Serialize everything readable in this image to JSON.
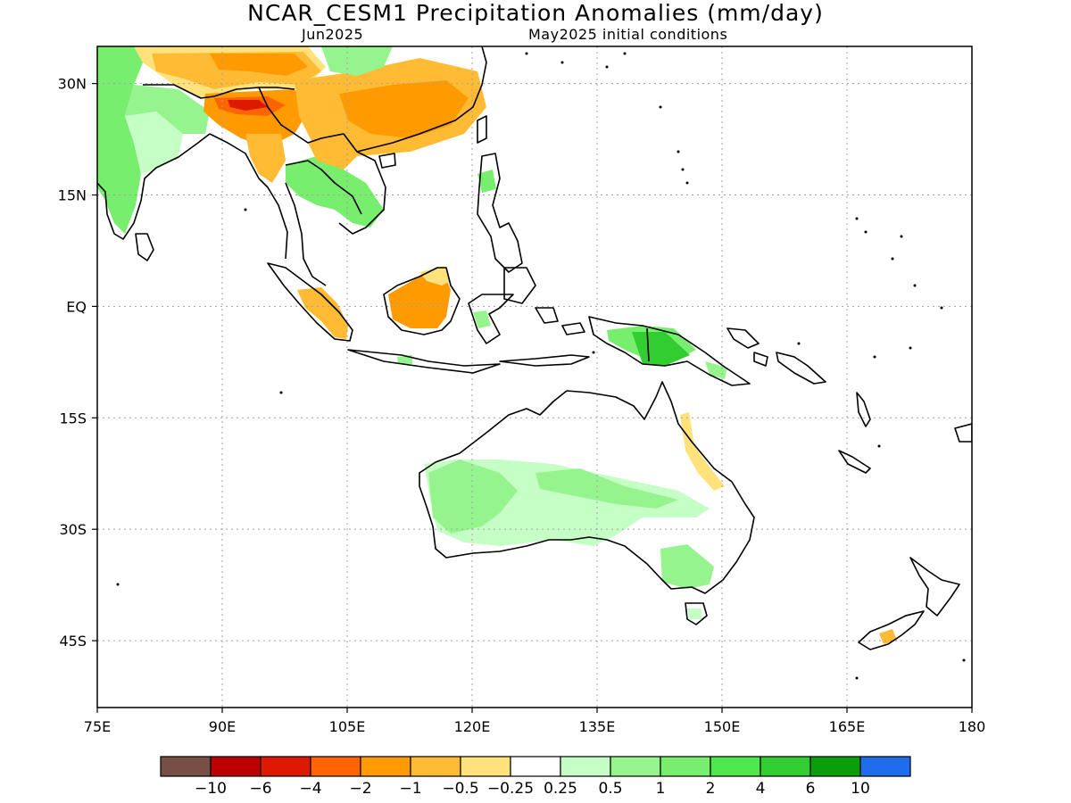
{
  "title": "NCAR_CESM1 Precipitation Anomalies (mm/day)",
  "subtitle_left": "Jun2025",
  "subtitle_right": "May2025 initial conditions",
  "map": {
    "lon_range": [
      75,
      180
    ],
    "lat_range": [
      -54,
      35
    ],
    "lon_ticks": [
      {
        "value": 75,
        "label": "75E"
      },
      {
        "value": 90,
        "label": "90E"
      },
      {
        "value": 105,
        "label": "105E"
      },
      {
        "value": 120,
        "label": "120E"
      },
      {
        "value": 135,
        "label": "135E"
      },
      {
        "value": 150,
        "label": "150E"
      },
      {
        "value": 165,
        "label": "165E"
      },
      {
        "value": 180,
        "label": "180"
      }
    ],
    "lat_ticks": [
      {
        "value": 30,
        "label": "30N"
      },
      {
        "value": 15,
        "label": "15N"
      },
      {
        "value": 0,
        "label": "EQ"
      },
      {
        "value": -15,
        "label": "15S"
      },
      {
        "value": -30,
        "label": "30S"
      },
      {
        "value": -45,
        "label": "45S"
      }
    ],
    "grid": true
  },
  "colorbar": {
    "colors": [
      "#774f44",
      "#bb0000",
      "#dd1a00",
      "#ff6400",
      "#ff9b00",
      "#ffbb33",
      "#ffe27b",
      "#ffffff",
      "#c6ffc6",
      "#96f48e",
      "#78ee6e",
      "#4ee84e",
      "#31cd31",
      "#0b9e0b",
      "#1e6eeb"
    ],
    "labels": [
      "−10",
      "−6",
      "−4",
      "−2",
      "−1",
      "−0.5",
      "−0.25",
      "0.25",
      "0.5",
      "1",
      "2",
      "4",
      "6",
      "10"
    ]
  },
  "colors": {
    "coast": "#000000",
    "grid": "#a0a0a0"
  }
}
